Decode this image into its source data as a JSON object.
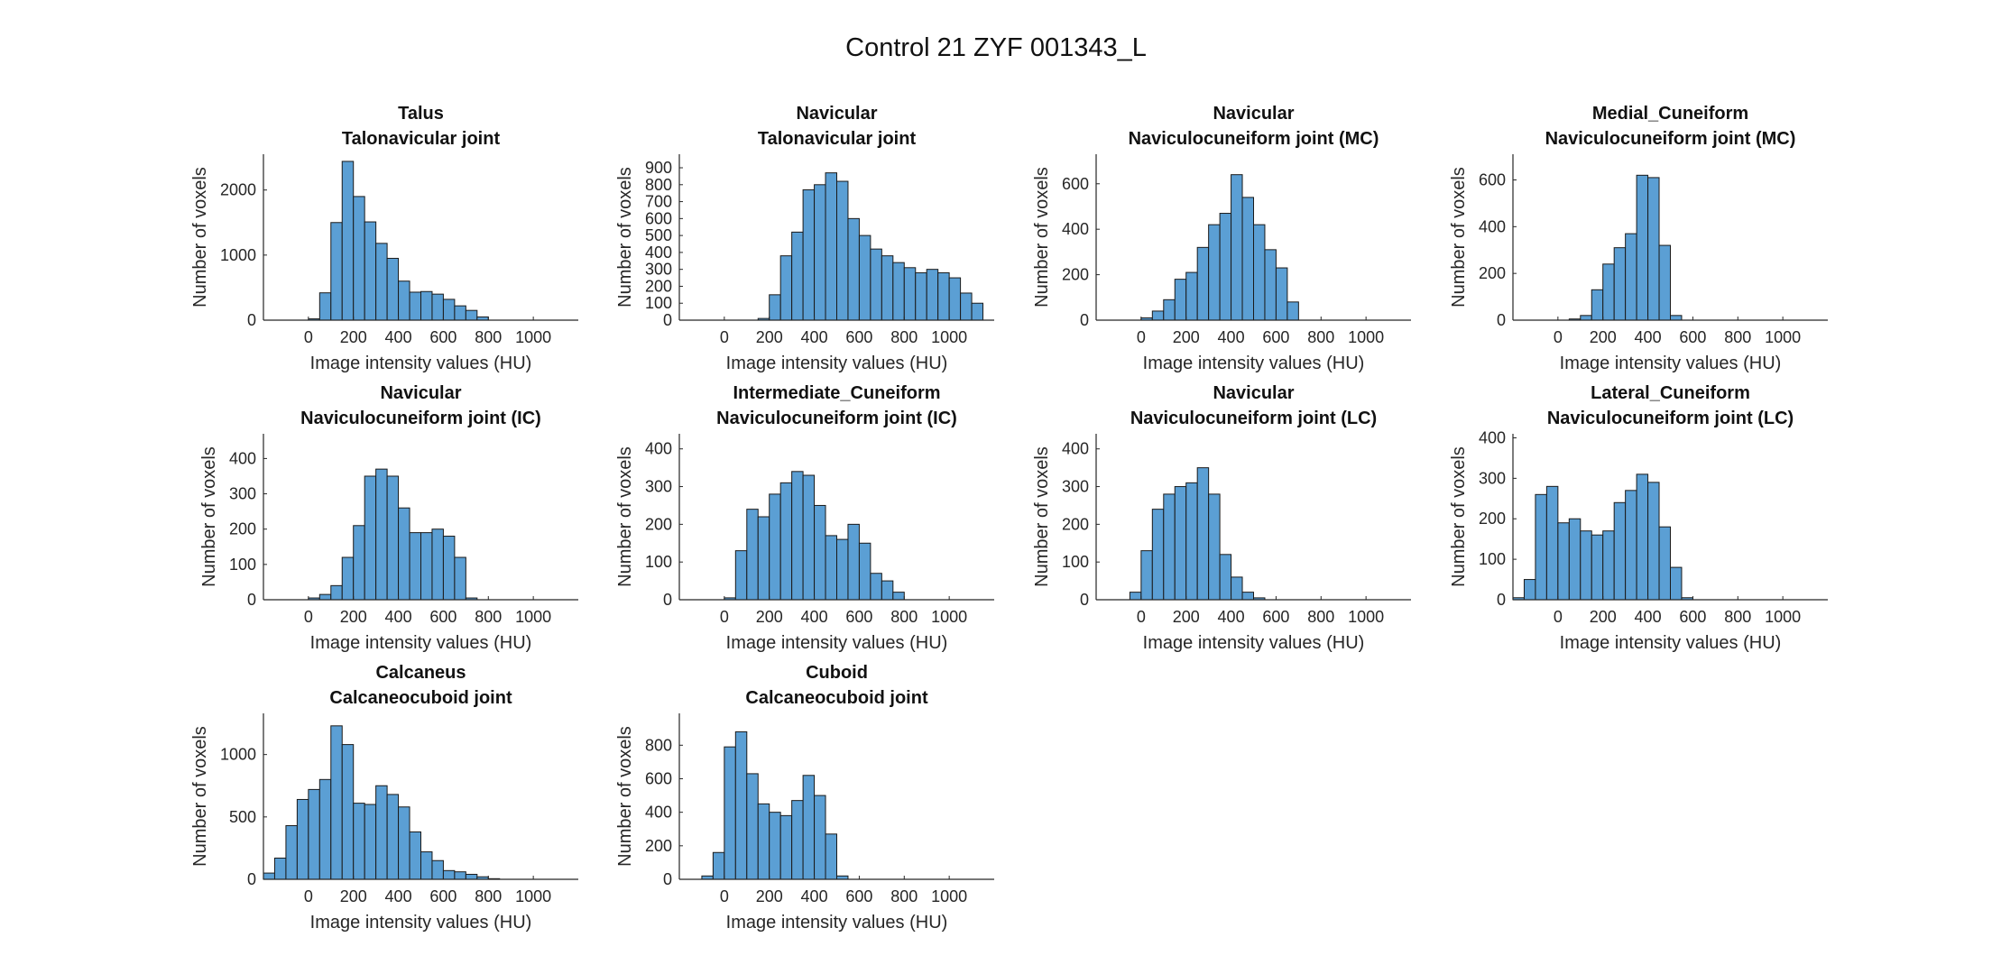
{
  "figure": {
    "title": "Control 21 ZYF 001343_L",
    "bar_color": "#5b9fd4",
    "bar_edge_color": "#1a1a1a"
  },
  "chart_data": [
    {
      "type": "bar",
      "title": [
        "Talus",
        "Talonavicular joint"
      ],
      "xlabel": "Image intensity values (HU)",
      "ylabel": "Number of voxels",
      "xlim": [
        -200,
        1200
      ],
      "ylim": [
        0,
        2550
      ],
      "xticks": [
        0,
        200,
        400,
        600,
        800,
        1000
      ],
      "yticks": [
        0,
        1000,
        2000
      ],
      "bin_width": 50,
      "bin_start": 0,
      "values": [
        20,
        420,
        1500,
        2440,
        1900,
        1510,
        1180,
        950,
        600,
        430,
        440,
        400,
        320,
        220,
        150,
        50
      ]
    },
    {
      "type": "bar",
      "title": [
        "Navicular",
        "Talonavicular joint"
      ],
      "xlabel": "Image intensity values (HU)",
      "ylabel": "Number of voxels",
      "xlim": [
        -200,
        1200
      ],
      "ylim": [
        0,
        980
      ],
      "xticks": [
        0,
        200,
        400,
        600,
        800,
        1000
      ],
      "yticks": [
        0,
        100,
        200,
        300,
        400,
        500,
        600,
        700,
        800,
        900
      ],
      "bin_width": 50,
      "bin_start": 150,
      "values": [
        10,
        150,
        380,
        520,
        770,
        800,
        870,
        820,
        600,
        500,
        420,
        380,
        340,
        310,
        280,
        300,
        280,
        250,
        160,
        100
      ]
    },
    {
      "type": "bar",
      "title": [
        "Navicular",
        "Naviculocuneiform joint (MC)"
      ],
      "xlabel": "Image intensity values (HU)",
      "ylabel": "Number of voxels",
      "xlim": [
        -200,
        1200
      ],
      "ylim": [
        0,
        730
      ],
      "xticks": [
        0,
        200,
        400,
        600,
        800,
        1000
      ],
      "yticks": [
        0,
        200,
        400,
        600
      ],
      "bin_width": 50,
      "bin_start": 0,
      "values": [
        10,
        40,
        90,
        180,
        210,
        320,
        420,
        470,
        640,
        540,
        420,
        310,
        230,
        80
      ]
    },
    {
      "type": "bar",
      "title": [
        "Medial_Cuneiform",
        "Naviculocuneiform joint (MC)"
      ],
      "xlabel": "Image intensity values (HU)",
      "ylabel": "Number of voxels",
      "xlim": [
        -200,
        1200
      ],
      "ylim": [
        0,
        710
      ],
      "xticks": [
        0,
        200,
        400,
        600,
        800,
        1000
      ],
      "yticks": [
        0,
        200,
        400,
        600
      ],
      "bin_width": 50,
      "bin_start": 50,
      "values": [
        5,
        20,
        130,
        240,
        310,
        370,
        620,
        610,
        320,
        20
      ]
    },
    {
      "type": "bar",
      "title": [
        "Navicular",
        "Naviculocuneiform joint (IC)"
      ],
      "xlabel": "Image intensity values (HU)",
      "ylabel": "Number of voxels",
      "xlim": [
        -200,
        1200
      ],
      "ylim": [
        0,
        470
      ],
      "xticks": [
        0,
        200,
        400,
        600,
        800,
        1000
      ],
      "yticks": [
        0,
        100,
        200,
        300,
        400
      ],
      "bin_width": 50,
      "bin_start": 0,
      "values": [
        5,
        15,
        40,
        120,
        210,
        350,
        370,
        350,
        260,
        190,
        190,
        200,
        180,
        120,
        5
      ]
    },
    {
      "type": "bar",
      "title": [
        "Intermediate_Cuneiform",
        "Naviculocuneiform joint (IC)"
      ],
      "xlabel": "Image intensity values (HU)",
      "ylabel": "Number of voxels",
      "xlim": [
        -200,
        1200
      ],
      "ylim": [
        0,
        440
      ],
      "xticks": [
        0,
        200,
        400,
        600,
        800,
        1000
      ],
      "yticks": [
        0,
        100,
        200,
        300,
        400
      ],
      "bin_width": 50,
      "bin_start": 0,
      "values": [
        5,
        130,
        240,
        220,
        280,
        310,
        340,
        330,
        250,
        170,
        160,
        200,
        150,
        70,
        50,
        20
      ]
    },
    {
      "type": "bar",
      "title": [
        "Navicular",
        "Naviculocuneiform joint (LC)"
      ],
      "xlabel": "Image intensity values (HU)",
      "ylabel": "Number of voxels",
      "xlim": [
        -200,
        1200
      ],
      "ylim": [
        0,
        440
      ],
      "xticks": [
        0,
        200,
        400,
        600,
        800,
        1000
      ],
      "yticks": [
        0,
        100,
        200,
        300,
        400
      ],
      "bin_width": 50,
      "bin_start": -50,
      "values": [
        20,
        130,
        240,
        280,
        300,
        310,
        350,
        280,
        120,
        60,
        20,
        5
      ]
    },
    {
      "type": "bar",
      "title": [
        "Lateral_Cuneiform",
        "Naviculocuneiform joint (LC)"
      ],
      "xlabel": "Image intensity values (HU)",
      "ylabel": "Number of voxels",
      "xlim": [
        -200,
        1200
      ],
      "ylim": [
        0,
        410
      ],
      "xticks": [
        0,
        200,
        400,
        600,
        800,
        1000
      ],
      "yticks": [
        0,
        100,
        200,
        300,
        400
      ],
      "bin_width": 50,
      "bin_start": -200,
      "values": [
        5,
        50,
        260,
        280,
        190,
        200,
        170,
        160,
        170,
        240,
        270,
        310,
        290,
        180,
        80,
        5
      ]
    },
    {
      "type": "bar",
      "title": [
        "Calcaneus",
        "Calcaneocuboid joint"
      ],
      "xlabel": "Image intensity values (HU)",
      "ylabel": "Number of voxels",
      "xlim": [
        -200,
        1200
      ],
      "ylim": [
        0,
        1330
      ],
      "xticks": [
        0,
        200,
        400,
        600,
        800,
        1000
      ],
      "yticks": [
        0,
        500,
        1000
      ],
      "bin_width": 50,
      "bin_start": -200,
      "values": [
        50,
        170,
        430,
        640,
        720,
        800,
        1230,
        1080,
        610,
        600,
        750,
        680,
        580,
        380,
        220,
        150,
        70,
        60,
        40,
        20,
        5
      ]
    },
    {
      "type": "bar",
      "title": [
        "Cuboid",
        "Calcaneocuboid joint"
      ],
      "xlabel": "Image intensity values (HU)",
      "ylabel": "Number of voxels",
      "xlim": [
        -200,
        1200
      ],
      "ylim": [
        0,
        990
      ],
      "xticks": [
        0,
        200,
        400,
        600,
        800,
        1000
      ],
      "yticks": [
        0,
        200,
        400,
        600,
        800
      ],
      "bin_width": 50,
      "bin_start": -100,
      "values": [
        20,
        160,
        790,
        880,
        630,
        450,
        400,
        380,
        470,
        620,
        500,
        270,
        20
      ]
    }
  ]
}
